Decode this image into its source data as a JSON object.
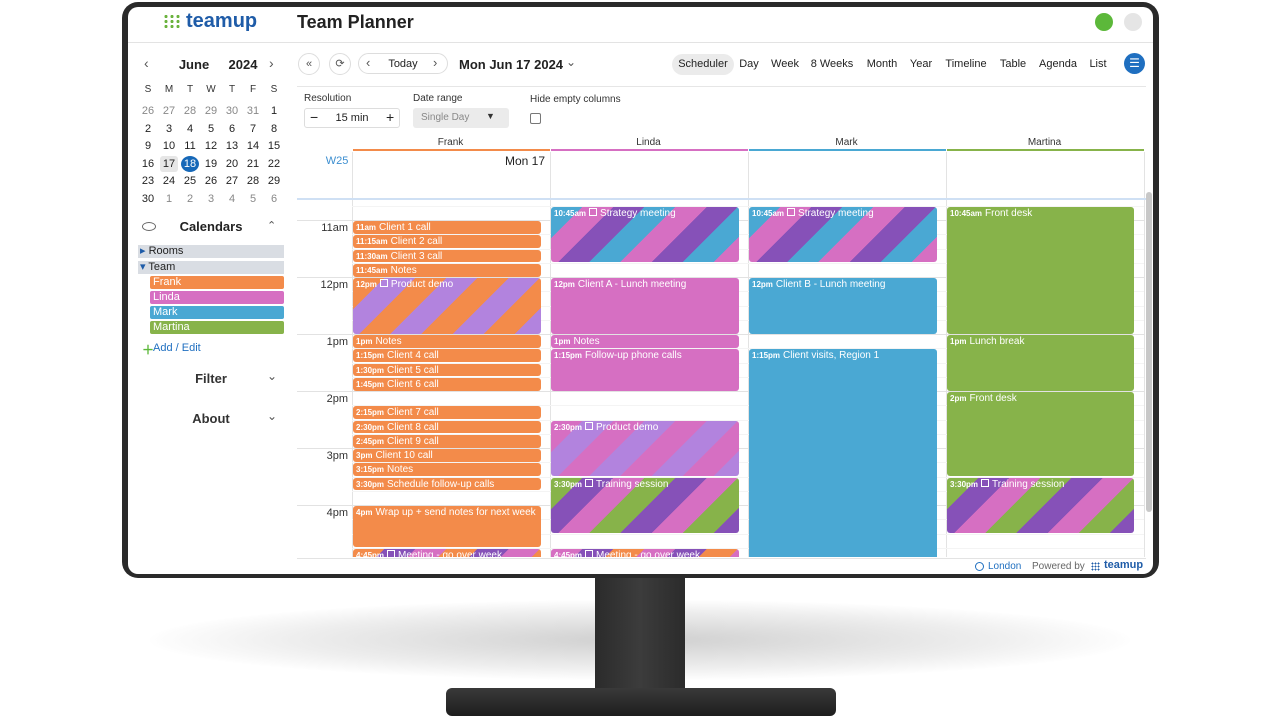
{
  "header": {
    "logo": "teamup",
    "title": "Team Planner"
  },
  "mini_calendar": {
    "month": "June",
    "year": "2024",
    "weekdays": [
      "S",
      "M",
      "T",
      "W",
      "T",
      "F",
      "S"
    ],
    "weeks": [
      [
        26,
        27,
        28,
        29,
        30,
        31,
        1
      ],
      [
        2,
        3,
        4,
        5,
        6,
        7,
        8
      ],
      [
        9,
        10,
        11,
        12,
        13,
        14,
        15
      ],
      [
        16,
        17,
        18,
        19,
        20,
        21,
        22
      ],
      [
        23,
        24,
        25,
        26,
        27,
        28,
        29
      ],
      [
        30,
        1,
        2,
        3,
        4,
        5,
        6
      ]
    ]
  },
  "sidebar": {
    "calendars_label": "Calendars",
    "folders": [
      "Rooms",
      "Team"
    ],
    "calendars": [
      "Frank",
      "Linda",
      "Mark",
      "Martina"
    ],
    "add_edit": "Add / Edit",
    "sections": [
      "Filter",
      "About"
    ]
  },
  "toolbar": {
    "today": "Today",
    "date": "Mon Jun 17 2024",
    "views": [
      "Scheduler",
      "Day",
      "Week",
      "8 Weeks",
      "Month",
      "Year",
      "Timeline",
      "Table",
      "Agenda",
      "List"
    ]
  },
  "options": {
    "resolution_label": "Resolution",
    "resolution_value": "15 min",
    "date_range_label": "Date range",
    "date_range_value": "Single Day",
    "hide_empty_label": "Hide empty columns"
  },
  "scheduler": {
    "week": "W25",
    "day": "Mon 17",
    "hours": [
      "11am",
      "12pm",
      "1pm",
      "2pm",
      "3pm",
      "4pm"
    ],
    "columns": [
      {
        "name": "Frank",
        "events": [
          {
            "time": "11am",
            "title": "Client 1 call"
          },
          {
            "time": "11:15am",
            "title": "Client 2 call"
          },
          {
            "time": "11:30am",
            "title": "Client 3 call"
          },
          {
            "time": "11:45am",
            "title": "Notes"
          },
          {
            "time": "12pm",
            "title": "Product demo"
          },
          {
            "time": "1pm",
            "title": "Notes"
          },
          {
            "time": "1:15pm",
            "title": "Client 4 call"
          },
          {
            "time": "1:30pm",
            "title": "Client 5 call"
          },
          {
            "time": "1:45pm",
            "title": "Client 6 call"
          },
          {
            "time": "2:15pm",
            "title": "Client 7 call"
          },
          {
            "time": "2:30pm",
            "title": "Client 8 call"
          },
          {
            "time": "2:45pm",
            "title": "Client 9 call"
          },
          {
            "time": "3pm",
            "title": "Client 10 call"
          },
          {
            "time": "3:15pm",
            "title": "Notes"
          },
          {
            "time": "3:30pm",
            "title": "Schedule follow-up calls"
          },
          {
            "time": "4pm",
            "title": "Wrap up + send notes for next week"
          },
          {
            "time": "4:45pm",
            "title": "Meeting - go over week"
          }
        ]
      },
      {
        "name": "Linda",
        "events": [
          {
            "time": "10:45am",
            "title": "Strategy meeting"
          },
          {
            "time": "12pm",
            "title": "Client A - Lunch meeting"
          },
          {
            "time": "1pm",
            "title": "Notes"
          },
          {
            "time": "1:15pm",
            "title": "Follow-up phone calls"
          },
          {
            "time": "2:30pm",
            "title": "Product demo"
          },
          {
            "time": "3:30pm",
            "title": "Training session"
          },
          {
            "time": "4:45pm",
            "title": "Meeting - go over week"
          }
        ]
      },
      {
        "name": "Mark",
        "events": [
          {
            "time": "10:45am",
            "title": "Strategy meeting"
          },
          {
            "time": "12pm",
            "title": "Client B - Lunch meeting"
          },
          {
            "time": "1:15pm",
            "title": "Client visits, Region 1"
          }
        ]
      },
      {
        "name": "Martina",
        "events": [
          {
            "time": "10:45am",
            "title": "Front desk"
          },
          {
            "time": "1pm",
            "title": "Lunch break"
          },
          {
            "time": "2pm",
            "title": "Front desk"
          },
          {
            "time": "3:30pm",
            "title": "Training session"
          }
        ]
      }
    ]
  },
  "footer": {
    "timezone": "London",
    "powered_by": "Powered by",
    "logo": "teamup"
  }
}
